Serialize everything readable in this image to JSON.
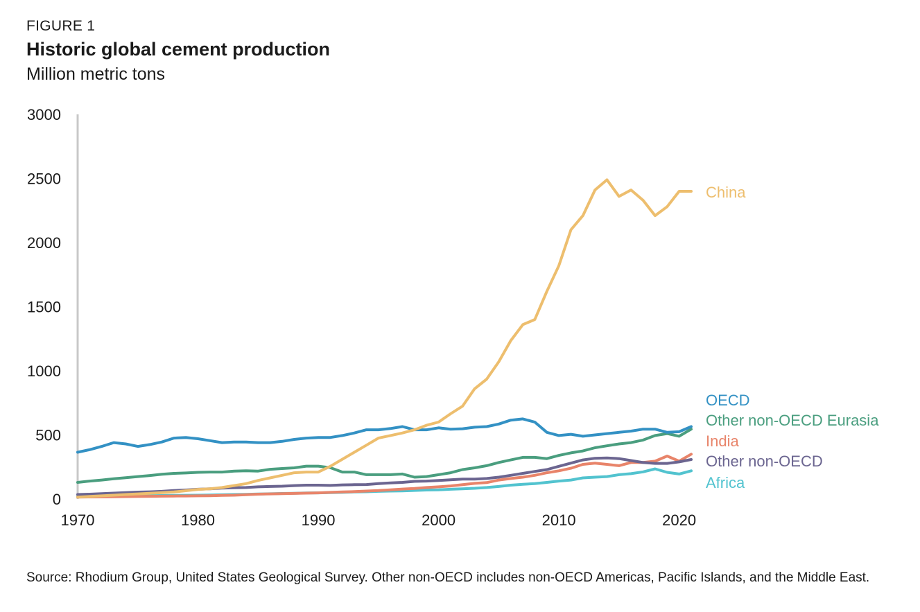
{
  "figure_label": "FIGURE 1",
  "source_note": "Source: Rhodium Group, United States Geological Survey. Other non-OECD includes non-OECD Americas, Pacific Islands, and the Middle East.",
  "chart_data": {
    "type": "line",
    "title": "Historic global cement production",
    "subtitle": "Million metric tons",
    "xlabel": "",
    "ylabel": "",
    "xlim": [
      1970,
      2021
    ],
    "ylim": [
      0,
      3000
    ],
    "x_ticks": [
      1970,
      1980,
      1990,
      2000,
      2010,
      2020
    ],
    "y_ticks": [
      0,
      500,
      1000,
      1500,
      2000,
      2500,
      3000
    ],
    "grid": false,
    "legend": "direct labels at line ends (right)",
    "x": [
      1970,
      1971,
      1972,
      1973,
      1974,
      1975,
      1976,
      1977,
      1978,
      1979,
      1980,
      1981,
      1982,
      1983,
      1984,
      1985,
      1986,
      1987,
      1988,
      1989,
      1990,
      1991,
      1992,
      1993,
      1994,
      1995,
      1996,
      1997,
      1998,
      1999,
      2000,
      2001,
      2002,
      2003,
      2004,
      2005,
      2006,
      2007,
      2008,
      2009,
      2010,
      2011,
      2012,
      2013,
      2014,
      2015,
      2016,
      2017,
      2018,
      2019,
      2020,
      2021
    ],
    "series": [
      {
        "name": "China",
        "color": "#EDBE6E",
        "values": [
          15,
          20,
          25,
          30,
          35,
          40,
          45,
          50,
          55,
          65,
          75,
          80,
          90,
          105,
          120,
          145,
          165,
          185,
          205,
          210,
          210,
          255,
          310,
          365,
          420,
          475,
          495,
          515,
          540,
          575,
          600,
          665,
          725,
          860,
          935,
          1070,
          1235,
          1360,
          1400,
          1620,
          1820,
          2100,
          2210,
          2410,
          2490,
          2360,
          2410,
          2330,
          2210,
          2280,
          2400,
          2400
        ]
      },
      {
        "name": "OECD",
        "color": "#3391C4",
        "values": [
          365,
          385,
          410,
          440,
          430,
          410,
          425,
          445,
          475,
          480,
          470,
          455,
          440,
          445,
          445,
          440,
          440,
          450,
          465,
          475,
          480,
          480,
          495,
          515,
          540,
          540,
          550,
          565,
          540,
          540,
          555,
          545,
          548,
          560,
          565,
          585,
          615,
          625,
          600,
          520,
          495,
          505,
          490,
          500,
          510,
          520,
          530,
          545,
          545,
          520,
          525,
          565
        ]
      },
      {
        "name": "Other non-OECD Eurasia",
        "color": "#4A9E7F",
        "values": [
          130,
          140,
          148,
          158,
          166,
          175,
          183,
          193,
          200,
          203,
          208,
          210,
          210,
          218,
          220,
          218,
          232,
          238,
          243,
          256,
          256,
          245,
          210,
          210,
          190,
          190,
          190,
          195,
          170,
          175,
          190,
          205,
          230,
          243,
          260,
          285,
          305,
          325,
          325,
          315,
          340,
          360,
          375,
          400,
          415,
          430,
          440,
          460,
          495,
          510,
          490,
          545
        ]
      },
      {
        "name": "India",
        "color": "#E8846A",
        "values": [
          15,
          16,
          17,
          18,
          19,
          20,
          21,
          22,
          23,
          24,
          25,
          26,
          28,
          30,
          34,
          38,
          40,
          42,
          44,
          46,
          48,
          52,
          55,
          58,
          62,
          66,
          72,
          78,
          82,
          90,
          95,
          102,
          112,
          122,
          128,
          148,
          160,
          170,
          185,
          205,
          220,
          240,
          270,
          280,
          270,
          260,
          285,
          285,
          295,
          335,
          295,
          350
        ]
      },
      {
        "name": "Other non-OECD",
        "color": "#6B6590",
        "values": [
          35,
          38,
          42,
          46,
          50,
          54,
          56,
          60,
          66,
          70,
          76,
          80,
          85,
          88,
          90,
          95,
          98,
          100,
          105,
          108,
          108,
          106,
          110,
          112,
          113,
          120,
          126,
          130,
          138,
          140,
          145,
          150,
          155,
          155,
          160,
          170,
          185,
          200,
          215,
          230,
          255,
          280,
          305,
          318,
          320,
          315,
          300,
          285,
          278,
          278,
          290,
          308
        ]
      },
      {
        "name": "Africa",
        "color": "#52C3CF",
        "values": [
          20,
          21,
          22,
          23,
          24,
          25,
          26,
          27,
          28,
          29,
          30,
          31,
          33,
          35,
          37,
          39,
          41,
          43,
          45,
          47,
          48,
          50,
          52,
          55,
          57,
          60,
          62,
          64,
          67,
          70,
          72,
          76,
          80,
          84,
          90,
          98,
          108,
          115,
          120,
          130,
          140,
          148,
          165,
          170,
          175,
          190,
          198,
          212,
          235,
          208,
          195,
          220
        ]
      }
    ]
  }
}
